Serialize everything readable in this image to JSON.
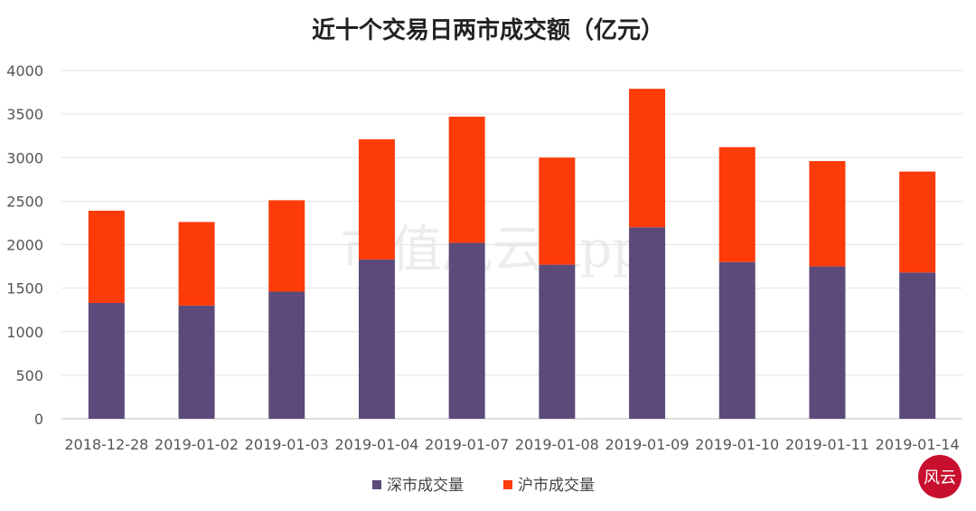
{
  "chart_data": {
    "type": "bar",
    "stacked": true,
    "title": "近十个交易日两市成交额（亿元）",
    "categories": [
      "2018-12-28",
      "2019-01-02",
      "2019-01-03",
      "2019-01-04",
      "2019-01-07",
      "2019-01-08",
      "2019-01-09",
      "2019-01-10",
      "2019-01-11",
      "2019-01-14"
    ],
    "series": [
      {
        "name": "深市成交量",
        "color": "#5b4a7a",
        "values": [
          1330,
          1300,
          1460,
          1830,
          2020,
          1770,
          2200,
          1800,
          1750,
          1680
        ]
      },
      {
        "name": "沪市成交量",
        "color": "#fe3b0a",
        "values": [
          1060,
          960,
          1050,
          1380,
          1450,
          1230,
          1590,
          1320,
          1210,
          1160
        ]
      }
    ],
    "ylim": [
      0,
      4000
    ],
    "yticks": [
      0,
      500,
      1000,
      1500,
      2000,
      2500,
      3000,
      3500,
      4000
    ],
    "grid": true,
    "legend_position": "bottom-center"
  },
  "watermark": "市值风云App",
  "logo": {
    "text": "风云",
    "color": "#c8102e"
  }
}
